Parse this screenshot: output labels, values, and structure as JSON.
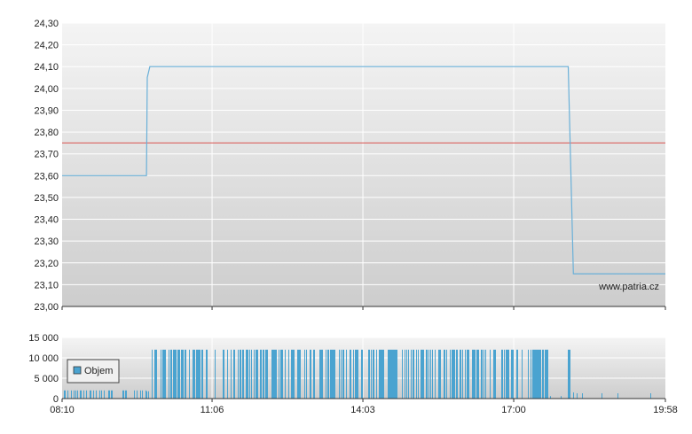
{
  "watermark": "www.patria.cz",
  "colors": {
    "price_line": "#6ab0d8",
    "reference_line": "#d9534f",
    "volume_bar": "#4aa3d0",
    "grid": "#ffffff",
    "axis": "#333333"
  },
  "chart_data": [
    {
      "type": "line",
      "x_ticks": [
        "08:10",
        "11:06",
        "14:03",
        "17:00",
        "19:58"
      ],
      "x_range": [
        "08:10",
        "19:58"
      ],
      "ylim": [
        23.0,
        24.3
      ],
      "y_ticks": [
        "23,00",
        "23,10",
        "23,20",
        "23,30",
        "23,40",
        "23,50",
        "23,60",
        "23,70",
        "23,80",
        "23,90",
        "24,00",
        "24,10",
        "24,20",
        "24,30"
      ],
      "grid": true,
      "series": [
        {
          "points": [
            {
              "x": "08:10",
              "y": 23.6
            },
            {
              "x": "09:49",
              "y": 23.6
            },
            {
              "x": "09:50",
              "y": 24.05
            },
            {
              "x": "09:53",
              "y": 24.1
            },
            {
              "x": "18:04",
              "y": 24.1
            },
            {
              "x": "18:10",
              "y": 23.15
            },
            {
              "x": "19:58",
              "y": 23.15
            }
          ]
        }
      ],
      "reference_lines": [
        {
          "y": 23.75
        }
      ]
    },
    {
      "type": "bar",
      "legend": "Objem",
      "legend_position": "middle-left",
      "ylim": [
        0,
        15000
      ],
      "y_ticks": [
        "0",
        "5 000",
        "10 000",
        "15 000"
      ],
      "grid": true,
      "volume_segments": [
        {
          "from": "08:10",
          "to": "09:48",
          "level": 2000,
          "density": 0.3
        },
        {
          "from": "09:48",
          "to": "09:52",
          "level": 1800,
          "density": 0.8
        },
        {
          "from": "09:55",
          "to": "17:41",
          "level": 12000,
          "density": 0.45
        },
        {
          "from": "17:41",
          "to": "18:04",
          "level": 600,
          "density": 0.1
        },
        {
          "from": "18:04",
          "to": "18:06",
          "level": 12000,
          "density": 1.0
        },
        {
          "from": "18:08",
          "to": "18:12",
          "level": 1500,
          "density": 0.6
        },
        {
          "from": "18:12",
          "to": "19:58",
          "level": 1300,
          "density": 0.06
        }
      ]
    }
  ]
}
